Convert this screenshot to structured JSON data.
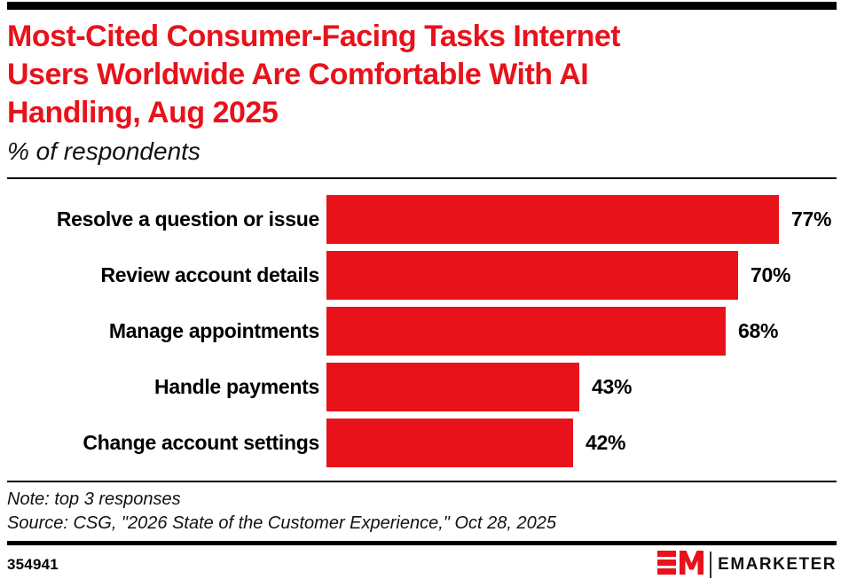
{
  "page": {
    "title_lines": [
      "Most-Cited Consumer-Facing Tasks Internet",
      "Users Worldwide Are Comfortable With AI",
      "Handling, Aug 2025"
    ],
    "subtitle": "% of respondents",
    "note": "Note: top 3 responses",
    "source": "Source: CSG, \"2026 State of the Customer Experience,\" Oct 28, 2025",
    "chart_id": "354941",
    "brand_name": "EMARKETER",
    "brand_logo_icon": "em-logo-icon"
  },
  "colors": {
    "accent_red": "#E8121A",
    "bar_red": "#E8121A",
    "text_black": "#000000",
    "rule_black": "#000000"
  },
  "chart_data": {
    "type": "bar",
    "orientation": "horizontal",
    "title": "Most-Cited Consumer-Facing Tasks Internet Users Worldwide Are Comfortable With AI Handling, Aug 2025",
    "subtitle": "% of respondents",
    "categories": [
      "Resolve a question or issue",
      "Review account details",
      "Manage appointments",
      "Handle payments",
      "Change account settings"
    ],
    "values": [
      77,
      70,
      68,
      43,
      42
    ],
    "value_suffix": "%",
    "value_labels": [
      "77%",
      "70%",
      "68%",
      "43%",
      "42%"
    ],
    "xlim": [
      0,
      100
    ],
    "grid": false,
    "legend": "none",
    "note": "top 3 responses",
    "source": "CSG, \"2026 State of the Customer Experience,\" Oct 28, 2025"
  }
}
